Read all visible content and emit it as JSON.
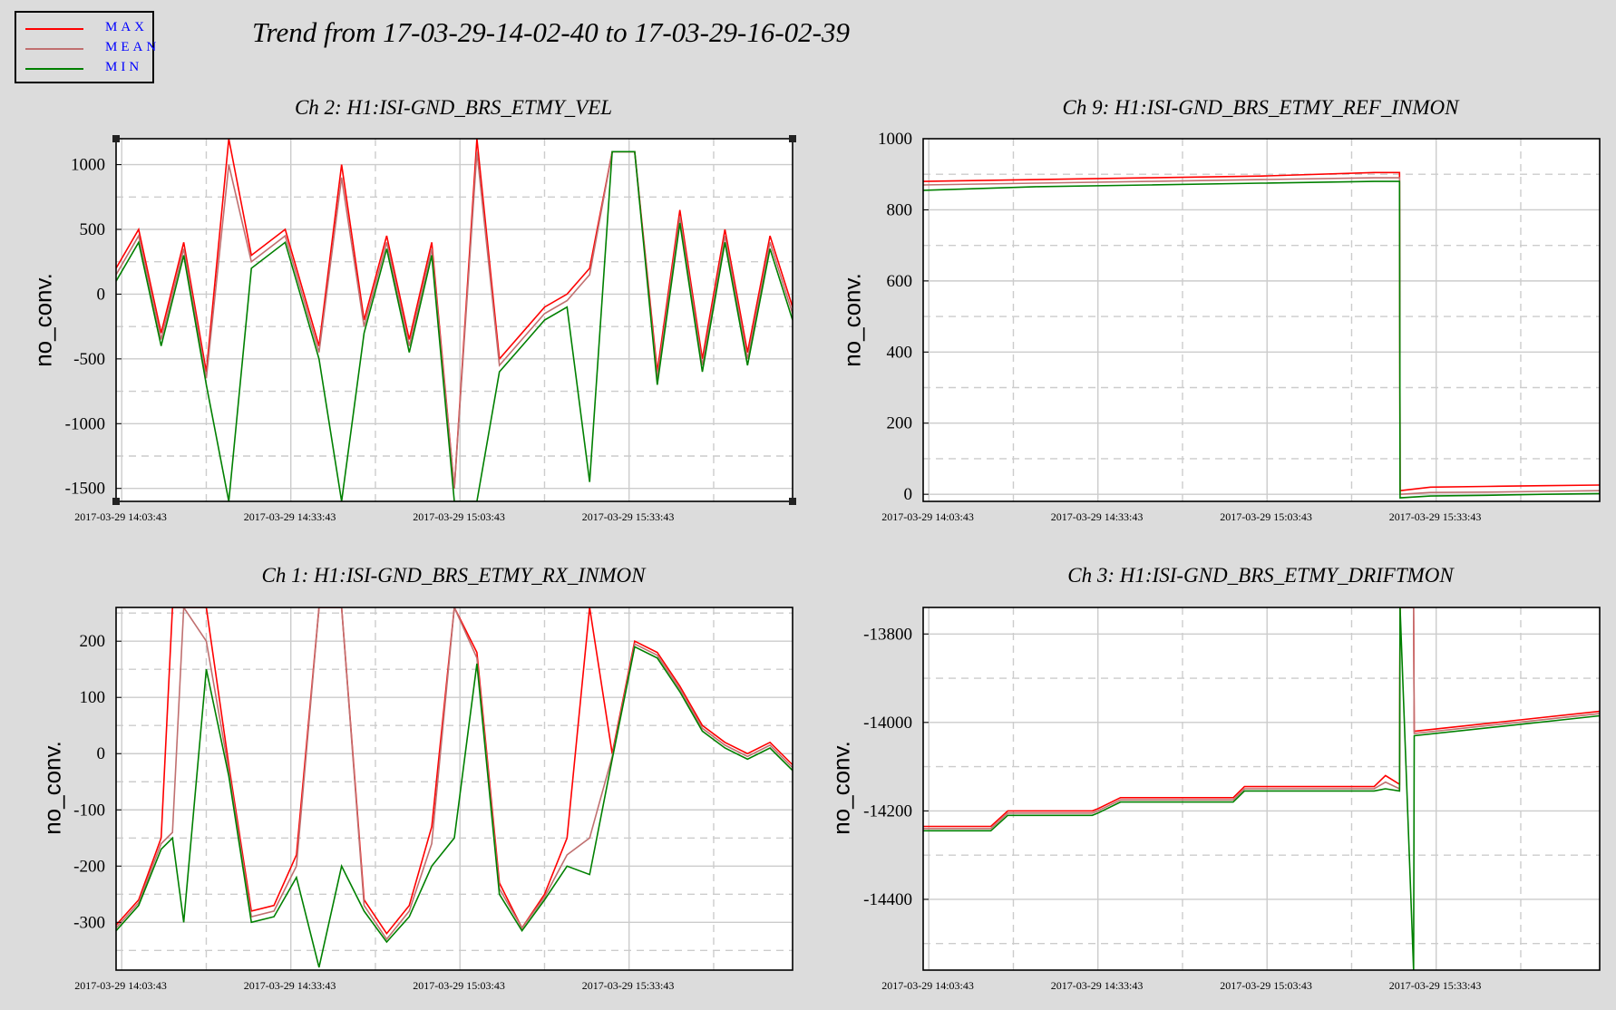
{
  "legend": {
    "items": [
      {
        "label": "MAX",
        "color": "#ff0000"
      },
      {
        "label": "MEAN",
        "color": "#c07070"
      },
      {
        "label": "MIN",
        "color": "#008000"
      }
    ]
  },
  "main_title": "Trend from 17-03-29-14-02-40 to 17-03-29-16-02-39",
  "chart_data": [
    {
      "type": "line",
      "title": "Ch 2: H1:ISI-GND_BRS_ETMY_VEL",
      "ylabel": "no_conv.",
      "xlabel": "",
      "xlim": [
        0,
        120
      ],
      "ylim": [
        -1600,
        1200
      ],
      "yticks": [
        1000,
        500,
        0,
        -500,
        -1000,
        -1500
      ],
      "xticks": [
        1,
        31,
        61,
        91
      ],
      "xtick_labels": [
        "2017-03-29 14:03:43",
        "2017-03-29 14:33:43",
        "2017-03-29 15:03:43",
        "2017-03-29 15:33:43"
      ],
      "x_unit": "minutes since 14:02:40",
      "grid": true,
      "series": [
        {
          "name": "MAX",
          "color": "#ff0000",
          "x": [
            0,
            4,
            8,
            12,
            16,
            20,
            24,
            30,
            36,
            40,
            44,
            48,
            52,
            56,
            60,
            64,
            68,
            72,
            76,
            80,
            84,
            88,
            92,
            96,
            100,
            104,
            108,
            112,
            116,
            120
          ],
          "y": [
            200,
            500,
            -300,
            400,
            -600,
            1200,
            300,
            500,
            -400,
            1000,
            -200,
            450,
            -350,
            400,
            -1500,
            1200,
            -500,
            -300,
            -100,
            0,
            200,
            1100,
            1100,
            -600,
            650,
            -500,
            500,
            -450,
            450,
            -100
          ]
        },
        {
          "name": "MEAN",
          "color": "#c07070",
          "x": [
            0,
            4,
            8,
            12,
            16,
            20,
            24,
            30,
            36,
            40,
            44,
            48,
            52,
            56,
            60,
            64,
            68,
            72,
            76,
            80,
            84,
            88,
            92,
            96,
            100,
            104,
            108,
            112,
            116,
            120
          ],
          "y": [
            150,
            450,
            -350,
            350,
            -650,
            1000,
            250,
            450,
            -450,
            900,
            -250,
            400,
            -400,
            350,
            -1500,
            1100,
            -550,
            -350,
            -150,
            -50,
            150,
            1100,
            1100,
            -650,
            600,
            -550,
            450,
            -500,
            400,
            -150
          ]
        },
        {
          "name": "MIN",
          "color": "#008000",
          "x": [
            0,
            4,
            8,
            12,
            16,
            20,
            24,
            30,
            36,
            40,
            44,
            48,
            52,
            56,
            60,
            64,
            68,
            72,
            76,
            80,
            84,
            88,
            92,
            96,
            100,
            104,
            108,
            112,
            116,
            120
          ],
          "y": [
            100,
            400,
            -400,
            300,
            -700,
            -1600,
            200,
            400,
            -500,
            -1600,
            -300,
            350,
            -450,
            300,
            -1600,
            -1600,
            -600,
            -400,
            -200,
            -100,
            -1450,
            1100,
            1100,
            -700,
            550,
            -600,
            400,
            -550,
            350,
            -200
          ]
        }
      ]
    },
    {
      "type": "line",
      "title": "Ch 9: H1:ISI-GND_BRS_ETMY_REF_INMON",
      "ylabel": "no_conv.",
      "xlabel": "",
      "xlim": [
        0,
        120
      ],
      "ylim": [
        -20,
        1000
      ],
      "yticks": [
        1000,
        800,
        600,
        400,
        200,
        0
      ],
      "xticks": [
        1,
        31,
        61,
        91
      ],
      "xtick_labels": [
        "2017-03-29 14:03:43",
        "2017-03-29 14:33:43",
        "2017-03-29 15:03:43",
        "2017-03-29 15:33:43"
      ],
      "x_unit": "minutes since 14:02:40",
      "grid": true,
      "series": [
        {
          "name": "MAX",
          "color": "#ff0000",
          "x": [
            0,
            20,
            40,
            60,
            80,
            84.5,
            84.6,
            90,
            100,
            110,
            120
          ],
          "y": [
            880,
            885,
            890,
            895,
            905,
            905,
            10,
            20,
            22,
            24,
            26
          ]
        },
        {
          "name": "MEAN",
          "color": "#c07070",
          "x": [
            0,
            20,
            40,
            60,
            80,
            84.5,
            84.6,
            90,
            100,
            110,
            120
          ],
          "y": [
            870,
            875,
            880,
            885,
            890,
            890,
            0,
            5,
            6,
            8,
            10
          ]
        },
        {
          "name": "MIN",
          "color": "#008000",
          "x": [
            0,
            20,
            40,
            60,
            80,
            84.5,
            84.6,
            90,
            100,
            110,
            120
          ],
          "y": [
            855,
            865,
            870,
            875,
            880,
            880,
            -10,
            -5,
            -3,
            0,
            2
          ]
        }
      ]
    },
    {
      "type": "line",
      "title": "Ch 1: H1:ISI-GND_BRS_ETMY_RX_INMON",
      "ylabel": "no_conv.",
      "xlabel": "",
      "xlim": [
        0,
        120
      ],
      "ylim": [
        -385,
        260
      ],
      "yticks": [
        200,
        100,
        0,
        -100,
        -200,
        -300
      ],
      "xticks": [
        1,
        31,
        61,
        91
      ],
      "xtick_labels": [
        "2017-03-29 14:03:43",
        "2017-03-29 14:33:43",
        "2017-03-29 15:03:43",
        "2017-03-29 15:33:43"
      ],
      "x_unit": "minutes since 14:02:40",
      "grid": true,
      "series": [
        {
          "name": "MAX",
          "color": "#ff0000",
          "x": [
            0,
            4,
            8,
            10,
            12,
            16,
            20,
            24,
            28,
            32,
            36,
            40,
            44,
            48,
            52,
            56,
            60,
            64,
            68,
            72,
            76,
            80,
            84,
            88,
            92,
            96,
            100,
            104,
            108,
            112,
            116,
            120
          ],
          "y": [
            -305,
            -260,
            -150,
            260,
            260,
            260,
            -20,
            -280,
            -270,
            -180,
            260,
            260,
            -260,
            -320,
            -270,
            -130,
            260,
            180,
            -230,
            -310,
            -250,
            -150,
            260,
            0,
            200,
            180,
            120,
            50,
            20,
            0,
            20,
            -20
          ]
        },
        {
          "name": "MEAN",
          "color": "#c07070",
          "x": [
            0,
            4,
            8,
            10,
            12,
            16,
            20,
            24,
            28,
            32,
            36,
            40,
            44,
            48,
            52,
            56,
            60,
            64,
            68,
            72,
            76,
            80,
            84,
            88,
            92,
            96,
            100,
            104,
            108,
            112,
            116,
            120
          ],
          "y": [
            -310,
            -265,
            -160,
            -140,
            260,
            200,
            -30,
            -290,
            -280,
            -200,
            260,
            260,
            -270,
            -330,
            -280,
            -160,
            260,
            170,
            -240,
            -310,
            -255,
            -180,
            -150,
            -5,
            195,
            175,
            115,
            45,
            15,
            -5,
            15,
            -25
          ]
        },
        {
          "name": "MIN",
          "color": "#008000",
          "x": [
            0,
            4,
            8,
            10,
            12,
            16,
            20,
            24,
            28,
            32,
            36,
            40,
            44,
            48,
            52,
            56,
            60,
            64,
            68,
            72,
            76,
            80,
            84,
            88,
            92,
            96,
            100,
            104,
            108,
            112,
            116,
            120
          ],
          "y": [
            -315,
            -270,
            -170,
            -150,
            -300,
            150,
            -40,
            -300,
            -290,
            -220,
            -380,
            -200,
            -280,
            -335,
            -290,
            -200,
            -150,
            160,
            -250,
            -315,
            -260,
            -200,
            -215,
            -10,
            190,
            170,
            110,
            40,
            10,
            -10,
            10,
            -30
          ]
        }
      ]
    },
    {
      "type": "line",
      "title": "Ch 3: H1:ISI-GND_BRS_ETMY_DRIFTMON",
      "ylabel": "no_conv.",
      "xlabel": "",
      "xlim": [
        0,
        120
      ],
      "ylim": [
        -14560,
        -13740
      ],
      "yticks": [
        -13800,
        -14000,
        -14200,
        -14400
      ],
      "xticks": [
        1,
        31,
        61,
        91
      ],
      "xtick_labels": [
        "2017-03-29 14:03:43",
        "2017-03-29 14:33:43",
        "2017-03-29 15:03:43",
        "2017-03-29 15:33:43"
      ],
      "x_unit": "minutes since 14:02:40",
      "grid": true,
      "series": [
        {
          "name": "MAX",
          "color": "#ff0000",
          "x": [
            0,
            12,
            15,
            30,
            31,
            35,
            55,
            57,
            80,
            82,
            84.5,
            84.6,
            87,
            87.1,
            120
          ],
          "y": [
            -14235,
            -14235,
            -14200,
            -14200,
            -14195,
            -14170,
            -14170,
            -14145,
            -14145,
            -14120,
            -14140,
            -13740,
            -13740,
            -14020,
            -13975
          ]
        },
        {
          "name": "MEAN",
          "color": "#c07070",
          "x": [
            0,
            12,
            15,
            30,
            31,
            35,
            55,
            57,
            80,
            82,
            84.5,
            84.6,
            87,
            87.1,
            120
          ],
          "y": [
            -14240,
            -14240,
            -14205,
            -14205,
            -14200,
            -14175,
            -14175,
            -14150,
            -14150,
            -14135,
            -14150,
            -13740,
            -13740,
            -14025,
            -13980
          ]
        },
        {
          "name": "MIN",
          "color": "#008000",
          "x": [
            0,
            12,
            15,
            30,
            31,
            35,
            55,
            57,
            80,
            82,
            84.5,
            84.6,
            87,
            87.1,
            120
          ],
          "y": [
            -14245,
            -14245,
            -14210,
            -14210,
            -14205,
            -14180,
            -14180,
            -14155,
            -14155,
            -14150,
            -14155,
            -13740,
            -14560,
            -14030,
            -13985
          ]
        }
      ]
    }
  ]
}
